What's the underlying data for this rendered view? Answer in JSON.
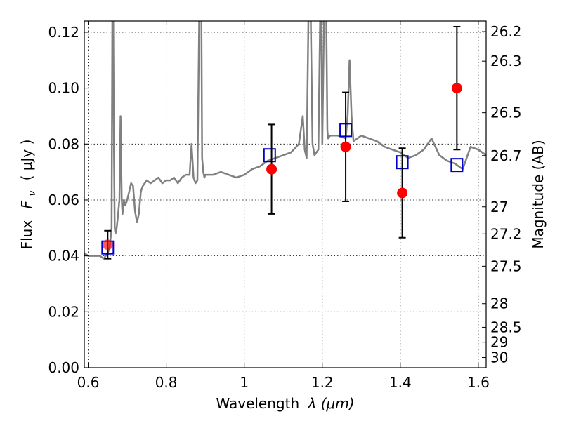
{
  "chart_data": {
    "type": "scatter",
    "title": "",
    "xlabel_prefix": "Wavelength",
    "xlabel_math": "λ (μm)",
    "ylabel_prefix": "Flux",
    "ylabel_math": "F",
    "ylabel_sub": "ν",
    "ylabel_unit": "( μJy )",
    "ylabel_right": "Magnitude (AB)",
    "xlim": [
      0.59,
      1.62
    ],
    "ylim": [
      0.0,
      0.124
    ],
    "grid": true,
    "x_ticks": [
      0.6,
      0.8,
      1.0,
      1.2,
      1.4,
      1.6
    ],
    "x_tick_labels": [
      "0.6",
      "0.8",
      "1",
      "1.2",
      "1.4",
      "1.6"
    ],
    "y_ticks": [
      0.0,
      0.02,
      0.04,
      0.06,
      0.08,
      0.1,
      0.12
    ],
    "y_tick_labels": [
      "0.00",
      "0.02",
      "0.04",
      "0.06",
      "0.08",
      "0.10",
      "0.12"
    ],
    "mag_ticks": [
      26.2,
      26.3,
      26.5,
      26.7,
      27,
      27.2,
      27.5,
      28,
      28.5,
      29,
      30
    ],
    "mag_tick_labels": [
      "26.2",
      "26.3",
      "26.5",
      "26.7",
      "27",
      "27.2",
      "27.5",
      "28",
      "28.5",
      "29",
      "30"
    ],
    "series": [
      {
        "kind": "line",
        "color": "#808080",
        "x": [
          0.59,
          0.6,
          0.61,
          0.62,
          0.63,
          0.64,
          0.645,
          0.65,
          0.655,
          0.66,
          0.662,
          0.664,
          0.666,
          0.668,
          0.67,
          0.673,
          0.676,
          0.68,
          0.683,
          0.686,
          0.688,
          0.69,
          0.692,
          0.695,
          0.7,
          0.705,
          0.71,
          0.715,
          0.72,
          0.725,
          0.73,
          0.735,
          0.74,
          0.75,
          0.76,
          0.77,
          0.78,
          0.79,
          0.8,
          0.81,
          0.82,
          0.83,
          0.84,
          0.85,
          0.86,
          0.865,
          0.87,
          0.875,
          0.88,
          0.885,
          0.888,
          0.89,
          0.892,
          0.895,
          0.898,
          0.9,
          0.92,
          0.94,
          0.96,
          0.98,
          1.0,
          1.02,
          1.04,
          1.06,
          1.08,
          1.1,
          1.12,
          1.14,
          1.15,
          1.155,
          1.16,
          1.165,
          1.17,
          1.175,
          1.18,
          1.19,
          1.195,
          1.197,
          1.2,
          1.205,
          1.21,
          1.213,
          1.215,
          1.22,
          1.24,
          1.26,
          1.265,
          1.27,
          1.275,
          1.28,
          1.29,
          1.3,
          1.32,
          1.34,
          1.36,
          1.38,
          1.4,
          1.42,
          1.44,
          1.46,
          1.48,
          1.5,
          1.52,
          1.54,
          1.56,
          1.58,
          1.6,
          1.62
        ],
        "y": [
          0.041,
          0.04,
          0.04,
          0.04,
          0.04,
          0.039,
          0.04,
          0.041,
          0.043,
          0.05,
          0.13,
          0.13,
          0.08,
          0.05,
          0.048,
          0.05,
          0.054,
          0.06,
          0.09,
          0.06,
          0.055,
          0.058,
          0.06,
          0.058,
          0.06,
          0.063,
          0.066,
          0.065,
          0.056,
          0.052,
          0.055,
          0.063,
          0.065,
          0.067,
          0.066,
          0.067,
          0.068,
          0.066,
          0.067,
          0.067,
          0.068,
          0.066,
          0.068,
          0.069,
          0.069,
          0.08,
          0.068,
          0.066,
          0.067,
          0.13,
          0.13,
          0.13,
          0.075,
          0.07,
          0.068,
          0.069,
          0.069,
          0.07,
          0.069,
          0.068,
          0.069,
          0.071,
          0.072,
          0.074,
          0.075,
          0.076,
          0.077,
          0.08,
          0.09,
          0.078,
          0.075,
          0.13,
          0.13,
          0.08,
          0.076,
          0.078,
          0.13,
          0.13,
          0.08,
          0.13,
          0.13,
          0.085,
          0.082,
          0.083,
          0.083,
          0.082,
          0.09,
          0.11,
          0.09,
          0.081,
          0.082,
          0.083,
          0.082,
          0.081,
          0.079,
          0.078,
          0.077,
          0.075,
          0.076,
          0.078,
          0.082,
          0.076,
          0.074,
          0.073,
          0.071,
          0.079,
          0.078,
          0.076
        ]
      },
      {
        "kind": "points",
        "marker": "square",
        "color": "#0000cc",
        "x": [
          0.65,
          1.065,
          1.26,
          1.405,
          1.545
        ],
        "y": [
          0.043,
          0.076,
          0.085,
          0.0735,
          0.0725
        ]
      },
      {
        "kind": "points",
        "marker": "circle",
        "color": "#ff0000",
        "x": [
          0.65,
          1.07,
          1.26,
          1.405,
          1.545
        ],
        "y": [
          0.044,
          0.071,
          0.079,
          0.0625,
          0.1
        ],
        "yerr": [
          0.005,
          0.016,
          0.0195,
          0.016,
          0.022
        ]
      }
    ]
  }
}
